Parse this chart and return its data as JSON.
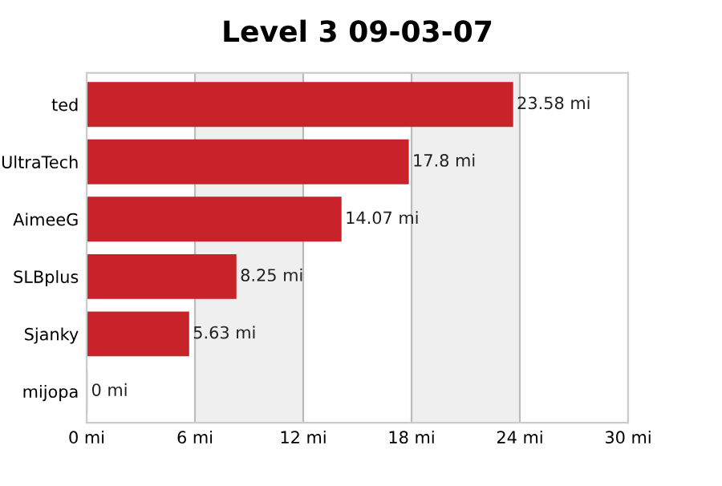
{
  "chart_data": {
    "type": "bar",
    "orientation": "horizontal",
    "title": "Level 3 09-03-07",
    "categories": [
      "ted",
      "UltraTech",
      "AimeeG",
      "SLBplus",
      "Sjanky",
      "mijopa"
    ],
    "values": [
      23.58,
      17.8,
      14.07,
      8.25,
      5.63,
      0
    ],
    "value_labels": [
      "23.58 mi",
      "17.8 mi",
      "14.07 mi",
      "8.25 mi",
      "5.63 mi",
      "0 mi"
    ],
    "color": "#c8222a",
    "xlim": [
      0,
      30
    ],
    "xticks": [
      {
        "value": 0,
        "label": "0 mi"
      },
      {
        "value": 6,
        "label": "6 mi"
      },
      {
        "value": 12,
        "label": "12 mi"
      },
      {
        "value": 18,
        "label": "18 mi"
      },
      {
        "value": 24,
        "label": "24 mi"
      },
      {
        "value": 30,
        "label": "30 mi"
      }
    ],
    "bands": [
      {
        "axis": "x",
        "from": 6,
        "to": 12,
        "color": "#efefef"
      },
      {
        "axis": "x",
        "from": 18,
        "to": 24,
        "color": "#efefef"
      }
    ],
    "grid": "x",
    "legend": false
  }
}
